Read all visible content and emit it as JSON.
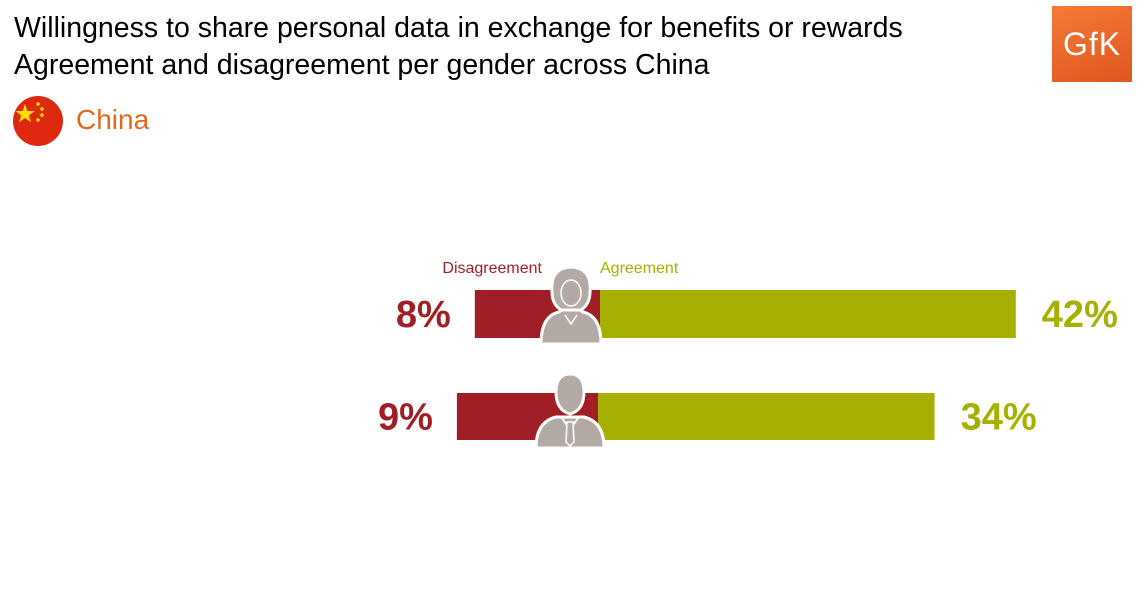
{
  "header": {
    "title_line1": "Willingness to share personal data in exchange for benefits or rewards",
    "title_line2": "Agreement and disagreement per gender across China"
  },
  "logo": {
    "text": "GfK",
    "color": "#e8622a"
  },
  "region": {
    "label": "China",
    "icon": "china-flag-icon",
    "color": "#e06a1c"
  },
  "colors": {
    "disagree": "#a01f26",
    "agree": "#a5b000",
    "person": "#b3aaa6"
  },
  "chart_data": {
    "type": "bar",
    "orientation": "horizontal",
    "stacked": "diverging",
    "categories": [
      "female",
      "male"
    ],
    "category_icons": [
      "female-person-icon",
      "male-person-icon"
    ],
    "series": [
      {
        "name": "Disagreement",
        "values": [
          8,
          9
        ],
        "labels": [
          "8%",
          "9%"
        ]
      },
      {
        "name": "Agreement",
        "values": [
          42,
          34
        ],
        "labels": [
          "42%",
          "34%"
        ]
      }
    ],
    "unit": "%",
    "legend": "top"
  }
}
